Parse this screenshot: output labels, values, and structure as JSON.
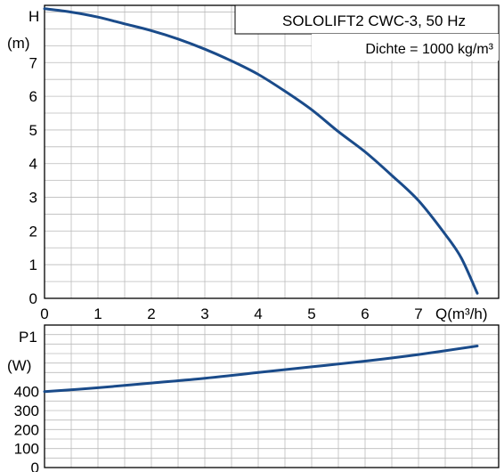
{
  "colors": {
    "curve": "#1a4b8a",
    "grid": "#bbbbbb",
    "frame": "#000000",
    "background": "#ffffff"
  },
  "chart_data": [
    {
      "type": "line",
      "title": "SOLOLIFT2 CWC-3, 50 Hz",
      "subtitle": "Dichte = 1000 kg/m³",
      "ylabel_symbol": "H",
      "ylabel_unit": "(m)",
      "xlabel": "Q(m³/h)",
      "xlim": [
        0,
        8.5
      ],
      "ylim": [
        0,
        8.7
      ],
      "x_ticks": [
        "0",
        "1",
        "2",
        "3",
        "4",
        "5",
        "6",
        "7"
      ],
      "y_ticks": [
        "0",
        "1",
        "2",
        "3",
        "4",
        "5",
        "6",
        "7"
      ],
      "grid": true,
      "series": [
        {
          "x": [
            0,
            0.5,
            1.0,
            1.5,
            2.0,
            2.5,
            3.0,
            3.5,
            4.0,
            4.5,
            5.0,
            5.5,
            6.0,
            6.5,
            7.0,
            7.5,
            7.8,
            8.1
          ],
          "y": [
            8.6,
            8.5,
            8.35,
            8.15,
            7.95,
            7.7,
            7.4,
            7.05,
            6.65,
            6.15,
            5.6,
            4.95,
            4.35,
            3.65,
            2.9,
            1.9,
            1.2,
            0.15
          ]
        }
      ]
    },
    {
      "type": "line",
      "ylabel_symbol": "P1",
      "ylabel_unit": "(W)",
      "xlim": [
        0,
        8.5
      ],
      "ylim": [
        0,
        750
      ],
      "y_ticks": [
        "0",
        "100",
        "200",
        "300",
        "400"
      ],
      "grid": true,
      "series": [
        {
          "x": [
            0,
            1,
            2,
            3,
            4,
            5,
            6,
            7,
            8.1
          ],
          "y": [
            400,
            420,
            445,
            470,
            500,
            530,
            560,
            595,
            640
          ]
        }
      ]
    }
  ]
}
